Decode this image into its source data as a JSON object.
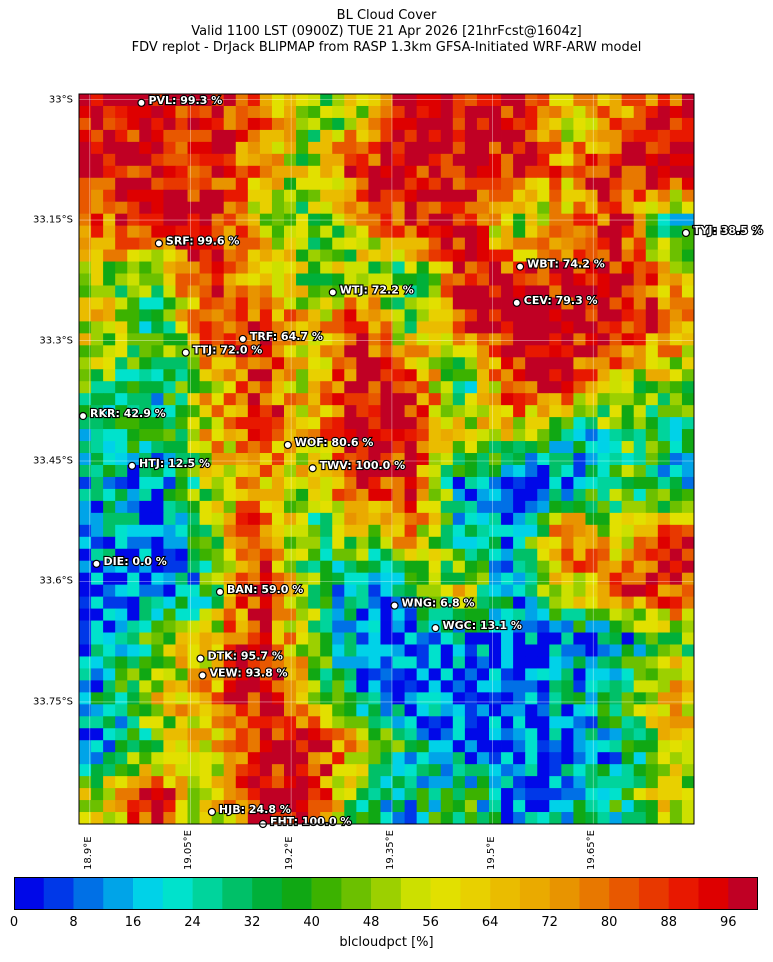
{
  "title": {
    "line1": "BL Cloud Cover",
    "line2": "Valid 1100 LST (0900Z) TUE 21 Apr 2026 [21hrFcst@1604z]",
    "line3": "FDV replot - DrJack BLIPMAP from RASP 1.3km GFSA-Initiated WRF-ARW model"
  },
  "chart_data": {
    "type": "heatmap",
    "lon_range": [
      18.884,
      19.8
    ],
    "lat_range_south": [
      32.993,
      33.902
    ],
    "grid": true,
    "lat_ticks": [
      {
        "value": 33.0,
        "label": "33°S"
      },
      {
        "value": 33.15,
        "label": "33.15°S"
      },
      {
        "value": 33.3,
        "label": "33.3°S"
      },
      {
        "value": 33.45,
        "label": "33.45°S"
      },
      {
        "value": 33.6,
        "label": "33.6°S"
      },
      {
        "value": 33.75,
        "label": "33.75°S"
      }
    ],
    "lon_ticks": [
      {
        "value": 18.9,
        "label": "18.9°E"
      },
      {
        "value": 19.05,
        "label": "19.05°E"
      },
      {
        "value": 19.2,
        "label": "19.2°E"
      },
      {
        "value": 19.35,
        "label": "19.35°E"
      },
      {
        "value": 19.5,
        "label": "19.5°E"
      },
      {
        "value": 19.65,
        "label": "19.65°E"
      }
    ],
    "cloud_field_coarse_pct": [
      [
        96,
        96,
        96,
        85,
        40,
        60,
        96,
        96,
        96,
        60,
        70,
        90
      ],
      [
        96,
        96,
        96,
        70,
        50,
        96,
        96,
        96,
        96,
        70,
        96,
        96
      ],
      [
        80,
        96,
        96,
        60,
        40,
        60,
        96,
        96,
        40,
        70,
        96,
        20
      ],
      [
        50,
        40,
        96,
        70,
        50,
        50,
        30,
        96,
        96,
        96,
        96,
        70
      ],
      [
        60,
        30,
        80,
        90,
        60,
        96,
        40,
        96,
        96,
        96,
        96,
        80
      ],
      [
        40,
        20,
        60,
        90,
        60,
        96,
        96,
        20,
        96,
        96,
        60,
        50
      ],
      [
        30,
        30,
        60,
        90,
        60,
        96,
        90,
        60,
        60,
        20,
        40,
        30
      ],
      [
        20,
        10,
        50,
        70,
        50,
        96,
        90,
        10,
        5,
        10,
        40,
        20
      ],
      [
        20,
        5,
        40,
        96,
        30,
        50,
        70,
        20,
        10,
        96,
        50,
        96
      ],
      [
        5,
        5,
        30,
        96,
        40,
        10,
        30,
        60,
        20,
        50,
        96,
        90
      ],
      [
        10,
        40,
        60,
        96,
        50,
        10,
        5,
        10,
        5,
        10,
        10,
        40
      ],
      [
        20,
        60,
        70,
        96,
        60,
        10,
        5,
        5,
        5,
        20,
        40,
        70
      ],
      [
        10,
        40,
        60,
        96,
        96,
        60,
        30,
        5,
        5,
        5,
        20,
        50
      ],
      [
        60,
        96,
        50,
        96,
        96,
        30,
        20,
        40,
        10,
        20,
        30,
        60
      ]
    ],
    "stations": [
      {
        "label": "PVL: 99.3 %",
        "lon": 18.977,
        "lat": 33.004,
        "value": 99.3
      },
      {
        "label": "SRF: 99.6 %",
        "lon": 19.003,
        "lat": 33.179,
        "value": 99.6
      },
      {
        "label": "WTJ: 72.2 %",
        "lon": 19.262,
        "lat": 33.24,
        "value": 72.2
      },
      {
        "label": "WBT: 74.2 %",
        "lon": 19.541,
        "lat": 33.208,
        "value": 74.2
      },
      {
        "label": "CEV: 79.3 %",
        "lon": 19.536,
        "lat": 33.253,
        "value": 79.3
      },
      {
        "label": "TRF: 64.7 %",
        "lon": 19.128,
        "lat": 33.298,
        "value": 64.7
      },
      {
        "label": "TTJ: 72.0 %",
        "lon": 19.043,
        "lat": 33.315,
        "value": 72.0
      },
      {
        "label": "TYJ: 38.5 %",
        "lon": 19.788,
        "lat": 33.166,
        "value": 38.5
      },
      {
        "label": "RKR: 42.9 %",
        "lon": 18.89,
        "lat": 33.394,
        "value": 42.9
      },
      {
        "label": "WOF: 80.6 %",
        "lon": 19.195,
        "lat": 33.43,
        "value": 80.6
      },
      {
        "label": "HTJ: 12.5 %",
        "lon": 18.963,
        "lat": 33.456,
        "value": 12.5
      },
      {
        "label": "TWV: 100.0 %",
        "lon": 19.232,
        "lat": 33.459,
        "value": 100.0
      },
      {
        "label": "DIE: 0.0 %",
        "lon": 18.91,
        "lat": 33.578,
        "value": 0.0
      },
      {
        "label": "BAN: 59.0 %",
        "lon": 19.094,
        "lat": 33.613,
        "value": 59.0
      },
      {
        "label": "WNG: 6.8 %",
        "lon": 19.354,
        "lat": 33.63,
        "value": 6.8
      },
      {
        "label": "WGC: 13.1 %",
        "lon": 19.415,
        "lat": 33.658,
        "value": 13.1
      },
      {
        "label": "DTK: 95.7 %",
        "lon": 19.065,
        "lat": 33.696,
        "value": 95.7
      },
      {
        "label": "VEW: 93.8 %",
        "lon": 19.068,
        "lat": 33.717,
        "value": 93.8
      },
      {
        "label": "HJB: 24.8 %",
        "lon": 19.082,
        "lat": 33.887,
        "value": 24.8
      },
      {
        "label": "FHT: 100.0 %",
        "lon": 19.158,
        "lat": 33.902,
        "value": 100.0
      }
    ],
    "colorbar": {
      "label": "blcloudpct [%]",
      "range": [
        0,
        100
      ],
      "step": 4,
      "tick_labels": [
        "0",
        "8",
        "16",
        "24",
        "32",
        "40",
        "48",
        "56",
        "64",
        "72",
        "80",
        "88",
        "96"
      ],
      "colors": [
        "#0008e8",
        "#0038e8",
        "#0070e6",
        "#00a4e8",
        "#00d2e8",
        "#00e2cc",
        "#00d49c",
        "#00c068",
        "#00b03a",
        "#10a814",
        "#3cb200",
        "#6cc000",
        "#9cd000",
        "#cce000",
        "#e2e000",
        "#e8d000",
        "#eabc00",
        "#eaaa00",
        "#e89400",
        "#e87800",
        "#e85800",
        "#e83800",
        "#e81800",
        "#de0000",
        "#c00024"
      ]
    }
  }
}
